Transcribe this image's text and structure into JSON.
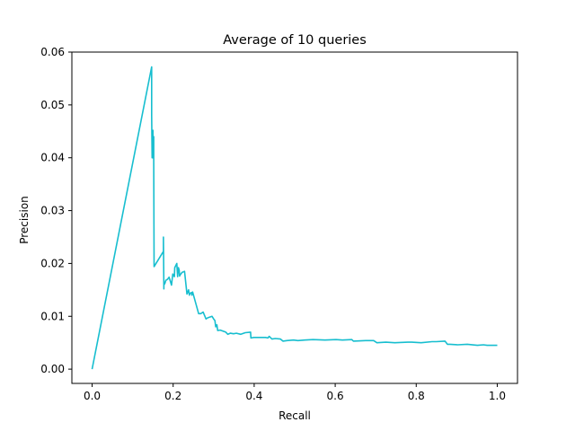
{
  "chart_data": {
    "type": "line",
    "title": "Average of 10 queries",
    "xlabel": "Recall",
    "ylabel": "Precision",
    "xlim": [
      -0.05,
      1.05
    ],
    "ylim": [
      -0.0027,
      0.06
    ],
    "xticks": [
      0.0,
      0.2,
      0.4,
      0.6,
      0.8,
      1.0
    ],
    "xtick_labels": [
      "0.0",
      "0.2",
      "0.4",
      "0.6",
      "0.8",
      "1.0"
    ],
    "yticks": [
      0.0,
      0.01,
      0.02,
      0.03,
      0.04,
      0.05,
      0.06
    ],
    "ytick_labels": [
      "0.00",
      "0.01",
      "0.02",
      "0.03",
      "0.04",
      "0.05",
      "0.06"
    ],
    "grid": false,
    "colors": {
      "series": "#17becf"
    },
    "series": [
      {
        "x": [
          0.0,
          0.147,
          0.147,
          0.148,
          0.149,
          0.15,
          0.15,
          0.151,
          0.152,
          0.152,
          0.153,
          0.176,
          0.176,
          0.177,
          0.177,
          0.178,
          0.18,
          0.182,
          0.186,
          0.19,
          0.196,
          0.199,
          0.203,
          0.204,
          0.209,
          0.211,
          0.213,
          0.215,
          0.216,
          0.218,
          0.22,
          0.222,
          0.228,
          0.234,
          0.238,
          0.24,
          0.241,
          0.245,
          0.246,
          0.248,
          0.263,
          0.265,
          0.268,
          0.274,
          0.281,
          0.285,
          0.296,
          0.3,
          0.303,
          0.305,
          0.308,
          0.31,
          0.316,
          0.323,
          0.33,
          0.335,
          0.341,
          0.349,
          0.356,
          0.367,
          0.378,
          0.391,
          0.392,
          0.399,
          0.411,
          0.419,
          0.428,
          0.434,
          0.437,
          0.444,
          0.452,
          0.465,
          0.471,
          0.481,
          0.497,
          0.508,
          0.525,
          0.545,
          0.575,
          0.602,
          0.618,
          0.641,
          0.645,
          0.675,
          0.695,
          0.703,
          0.725,
          0.747,
          0.779,
          0.789,
          0.812,
          0.839,
          0.849,
          0.871,
          0.877,
          0.883,
          0.902,
          0.926,
          0.951,
          0.966,
          0.975,
          0.988,
          1.0
        ],
        "y": [
          0.0,
          0.0572,
          0.048,
          0.04,
          0.0452,
          0.04,
          0.0452,
          0.04,
          0.044,
          0.04,
          0.0194,
          0.0223,
          0.025,
          0.0152,
          0.0166,
          0.016,
          0.0163,
          0.0168,
          0.017,
          0.0174,
          0.0159,
          0.018,
          0.0175,
          0.0192,
          0.02,
          0.0175,
          0.0192,
          0.0187,
          0.0176,
          0.0179,
          0.0181,
          0.0183,
          0.0185,
          0.0142,
          0.015,
          0.014,
          0.0143,
          0.0145,
          0.014,
          0.0146,
          0.0105,
          0.0105,
          0.0105,
          0.0108,
          0.0095,
          0.0097,
          0.01,
          0.0095,
          0.0092,
          0.008,
          0.0084,
          0.0073,
          0.0074,
          0.0072,
          0.007,
          0.0066,
          0.0068,
          0.0067,
          0.0068,
          0.0066,
          0.0069,
          0.007,
          0.0059,
          0.006,
          0.006,
          0.006,
          0.006,
          0.0059,
          0.0062,
          0.0057,
          0.0058,
          0.0057,
          0.0053,
          0.0054,
          0.0055,
          0.0054,
          0.0055,
          0.0056,
          0.0055,
          0.0056,
          0.0055,
          0.0056,
          0.0053,
          0.0054,
          0.0054,
          0.005,
          0.0051,
          0.005,
          0.0051,
          0.0051,
          0.005,
          0.0052,
          0.0052,
          0.0053,
          0.0047,
          0.0047,
          0.0046,
          0.0047,
          0.0045,
          0.0046,
          0.0045,
          0.0045,
          0.0045
        ]
      }
    ]
  }
}
